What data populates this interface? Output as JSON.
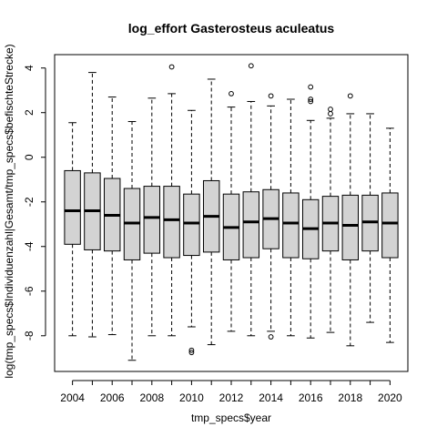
{
  "chart_data": {
    "type": "boxplot",
    "title": "log_effort Gasterosteus aculeatus",
    "xlabel": "tmp_specs$year",
    "ylabel": "log(tmp_specs$Individuenzahl|Gesamt/tmp_specs$befischteStrecke)",
    "categories": [
      "2004",
      "2005",
      "2006",
      "2007",
      "2008",
      "2009",
      "2010",
      "2011",
      "2012",
      "2013",
      "2014",
      "2015",
      "2016",
      "2017",
      "2018",
      "2019",
      "2020"
    ],
    "x_tick_labels": [
      "2004",
      "2006",
      "2008",
      "2010",
      "2012",
      "2014",
      "2016",
      "2018",
      "2020"
    ],
    "y_ticks": [
      -8,
      -6,
      -4,
      -2,
      0,
      2,
      4
    ],
    "ylim": [
      -9.6,
      4.6
    ],
    "box_fill": "#d3d3d3",
    "grid": false,
    "boxes": [
      {
        "year": "2004",
        "min": -8.0,
        "q1": -3.9,
        "median": -2.4,
        "q3": -0.6,
        "max": 1.55,
        "outliers": []
      },
      {
        "year": "2005",
        "min": -8.05,
        "q1": -4.15,
        "median": -2.4,
        "q3": -0.7,
        "max": 3.8,
        "outliers": []
      },
      {
        "year": "2006",
        "min": -7.95,
        "q1": -4.2,
        "median": -2.6,
        "q3": -0.95,
        "max": 2.7,
        "outliers": []
      },
      {
        "year": "2007",
        "min": -9.1,
        "q1": -4.6,
        "median": -2.95,
        "q3": -1.4,
        "max": 1.6,
        "outliers": []
      },
      {
        "year": "2008",
        "min": -8.0,
        "q1": -4.3,
        "median": -2.7,
        "q3": -1.3,
        "max": 2.65,
        "outliers": []
      },
      {
        "year": "2009",
        "min": -8.0,
        "q1": -4.5,
        "median": -2.8,
        "q3": -1.3,
        "max": 2.85,
        "outliers": [
          4.05
        ]
      },
      {
        "year": "2010",
        "min": -7.6,
        "q1": -4.4,
        "median": -2.95,
        "q3": -1.65,
        "max": 2.1,
        "outliers": [
          -8.65,
          -8.75
        ]
      },
      {
        "year": "2011",
        "min": -8.4,
        "q1": -4.25,
        "median": -2.65,
        "q3": -1.05,
        "max": 3.5,
        "outliers": []
      },
      {
        "year": "2012",
        "min": -7.8,
        "q1": -4.6,
        "median": -3.15,
        "q3": -1.65,
        "max": 2.25,
        "outliers": [
          2.85
        ]
      },
      {
        "year": "2013",
        "min": -8.0,
        "q1": -4.5,
        "median": -2.9,
        "q3": -1.55,
        "max": 2.5,
        "outliers": [
          4.1
        ]
      },
      {
        "year": "2014",
        "min": -7.8,
        "q1": -4.1,
        "median": -2.75,
        "q3": -1.45,
        "max": 2.3,
        "outliers": [
          2.75,
          -8.05
        ]
      },
      {
        "year": "2015",
        "min": -8.0,
        "q1": -4.5,
        "median": -2.95,
        "q3": -1.6,
        "max": 2.6,
        "outliers": []
      },
      {
        "year": "2016",
        "min": -8.1,
        "q1": -4.55,
        "median": -3.2,
        "q3": -1.9,
        "max": 1.65,
        "outliers": [
          3.15,
          2.6,
          2.5
        ]
      },
      {
        "year": "2017",
        "min": -7.85,
        "q1": -4.2,
        "median": -2.95,
        "q3": -1.75,
        "max": 1.75,
        "outliers": [
          2.15,
          1.95
        ]
      },
      {
        "year": "2018",
        "min": -8.45,
        "q1": -4.6,
        "median": -3.05,
        "q3": -1.7,
        "max": 1.95,
        "outliers": [
          2.75
        ]
      },
      {
        "year": "2019",
        "min": -7.4,
        "q1": -4.2,
        "median": -2.9,
        "q3": -1.7,
        "max": 1.95,
        "outliers": []
      },
      {
        "year": "2020",
        "min": -8.3,
        "q1": -4.5,
        "median": -2.95,
        "q3": -1.6,
        "max": 1.3,
        "outliers": []
      }
    ]
  }
}
